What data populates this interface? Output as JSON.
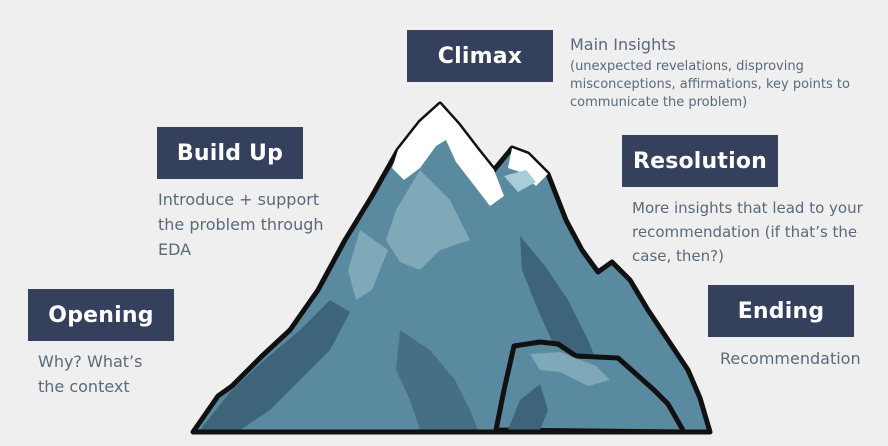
{
  "colors": {
    "background": "#efefef",
    "label_box": "#34405c",
    "label_text": "#ffffff",
    "description_text": "#5a6a7a",
    "mountain_dark": "#3d6478",
    "mountain_mid": "#5a8aa0",
    "mountain_light": "#7fa8b8",
    "snow": "#ffffff",
    "outline": "#111111"
  },
  "stages": {
    "climax": {
      "label": "Climax",
      "title": "Main Insights",
      "detail_1": "(unexpected revelations, disproving",
      "detail_2": "misconceptions, affirmations, key points to",
      "detail_3": "communicate the problem)"
    },
    "build_up": {
      "label": "Build Up",
      "line_1": "Introduce + support",
      "line_2": "the problem through",
      "line_3": "EDA"
    },
    "resolution": {
      "label": "Resolution",
      "line_1": "More insights that lead to your",
      "line_2": "recommendation (if that’s the",
      "line_3": "case, then?)"
    },
    "opening": {
      "label": "Opening",
      "line_1": "Why? What’s",
      "line_2": "the context"
    },
    "ending": {
      "label": "Ending",
      "line_1": "Recommendation"
    }
  }
}
